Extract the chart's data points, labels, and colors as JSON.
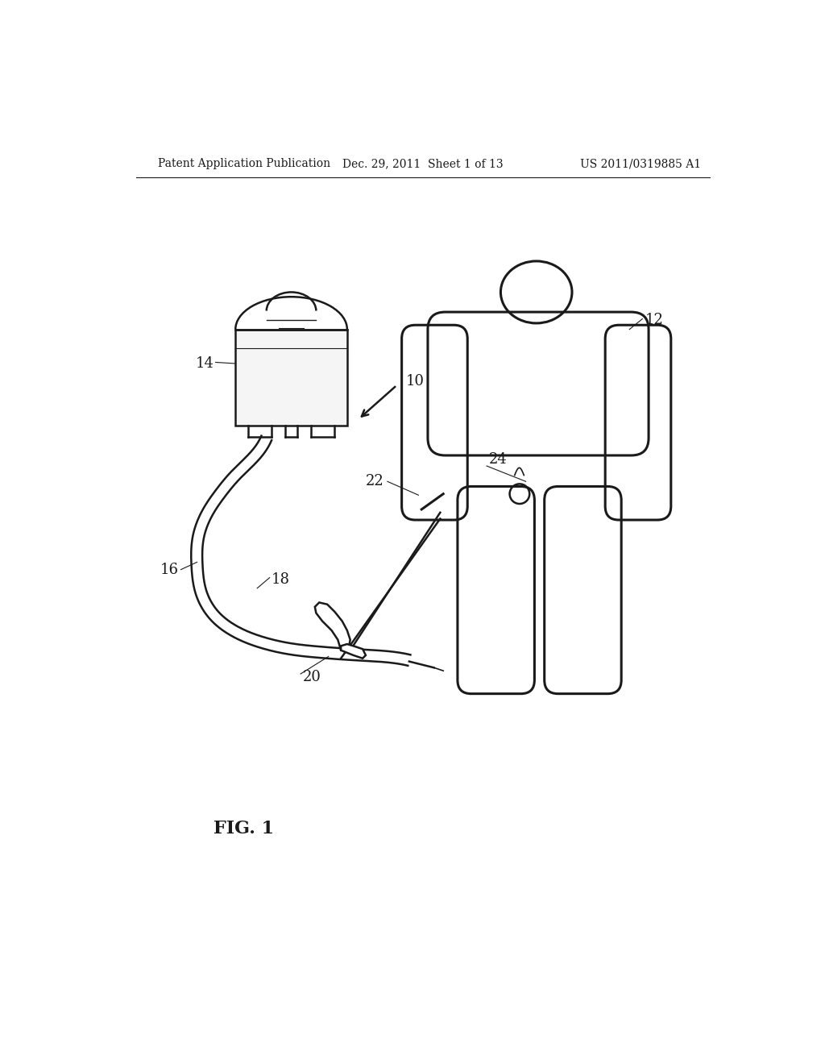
{
  "title_left": "Patent Application Publication",
  "title_center": "Dec. 29, 2011  Sheet 1 of 13",
  "title_right": "US 2011/0319885 A1",
  "fig_label": "FIG. 1",
  "bg_color": "#ffffff",
  "line_color": "#1a1a1a",
  "lw_thin": 1.2,
  "lw_med": 1.8,
  "lw_thick": 2.2,
  "header_fontsize": 10,
  "label_fontsize": 13
}
